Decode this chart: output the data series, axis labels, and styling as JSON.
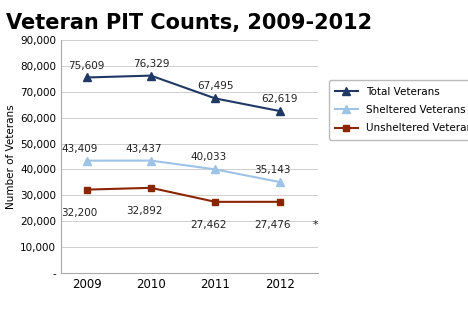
{
  "title": "Veteran PIT Counts, 2009-2012",
  "years": [
    2009,
    2010,
    2011,
    2012
  ],
  "total_veterans": [
    75609,
    76329,
    67495,
    62619
  ],
  "sheltered_veterans": [
    43409,
    43437,
    40033,
    35143
  ],
  "unsheltered_veterans": [
    32200,
    32892,
    27462,
    27476
  ],
  "total_color": "#1F3864",
  "sheltered_color": "#9DC3E6",
  "unsheltered_color": "#8B2500",
  "ylabel": "Number of Veterans",
  "ylim": [
    0,
    90000
  ],
  "yticks": [
    0,
    10000,
    20000,
    30000,
    40000,
    50000,
    60000,
    70000,
    80000,
    90000
  ],
  "ytick_labels": [
    "-",
    "10,000",
    "20,000",
    "30,000",
    "40,000",
    "50,000",
    "60,000",
    "70,000",
    "80,000",
    "90,000"
  ],
  "total_labels": [
    "75,609",
    "76,329",
    "67,495",
    "62,619"
  ],
  "sheltered_labels": [
    "43,409",
    "43,437",
    "40,033",
    "35,143"
  ],
  "unsheltered_labels": [
    "32,200",
    "32,892",
    "27,462",
    "27,476"
  ],
  "legend_labels": [
    "Total Veterans",
    "Sheltered Veterans",
    "Unsheltered Veterans"
  ],
  "asterisk_note": "*",
  "title_fontsize": 15,
  "label_fontsize": 7.5,
  "background_color": "#FFFFFF"
}
